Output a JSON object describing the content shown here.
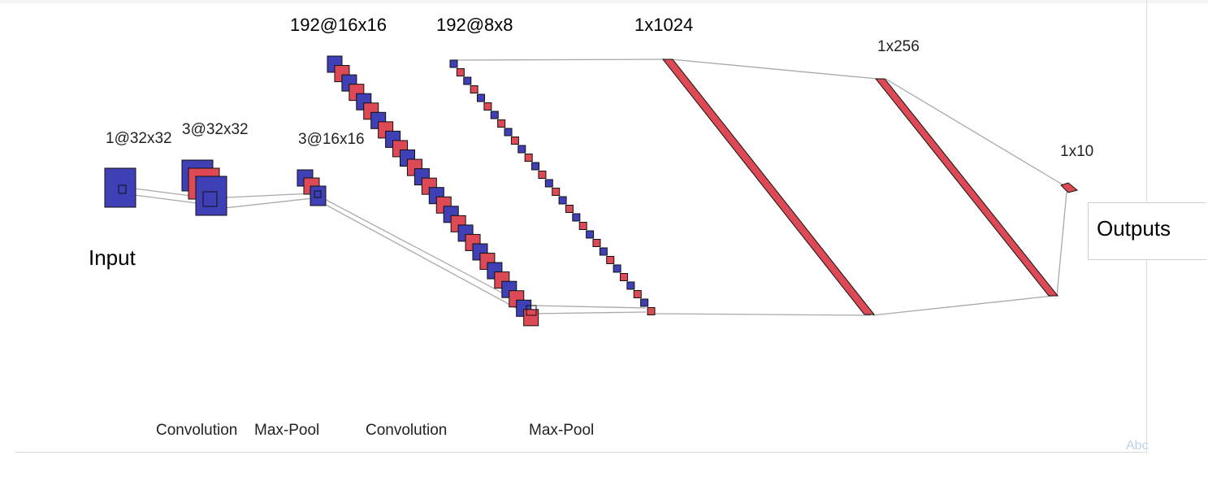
{
  "colors": {
    "blue": "#3f3fb6",
    "red": "#dd4a55",
    "edge": "#111111",
    "line": "#a9a9a9"
  },
  "layers": {
    "input_shape": "1@32x32",
    "conv1_shape": "3@32x32",
    "pool1_shape": "3@16x16",
    "conv2_shape": "192@16x16",
    "pool2_shape": "192@8x8",
    "fc1_shape": "1x1024",
    "fc2_shape": "1x256",
    "out_shape": "1x10"
  },
  "operations": {
    "op1": "Convolution",
    "op2": "Max-Pool",
    "op3": "Convolution",
    "op4": "Max-Pool"
  },
  "captions": {
    "input": "Input",
    "outputs": "Outputs",
    "corner": "Abc"
  }
}
